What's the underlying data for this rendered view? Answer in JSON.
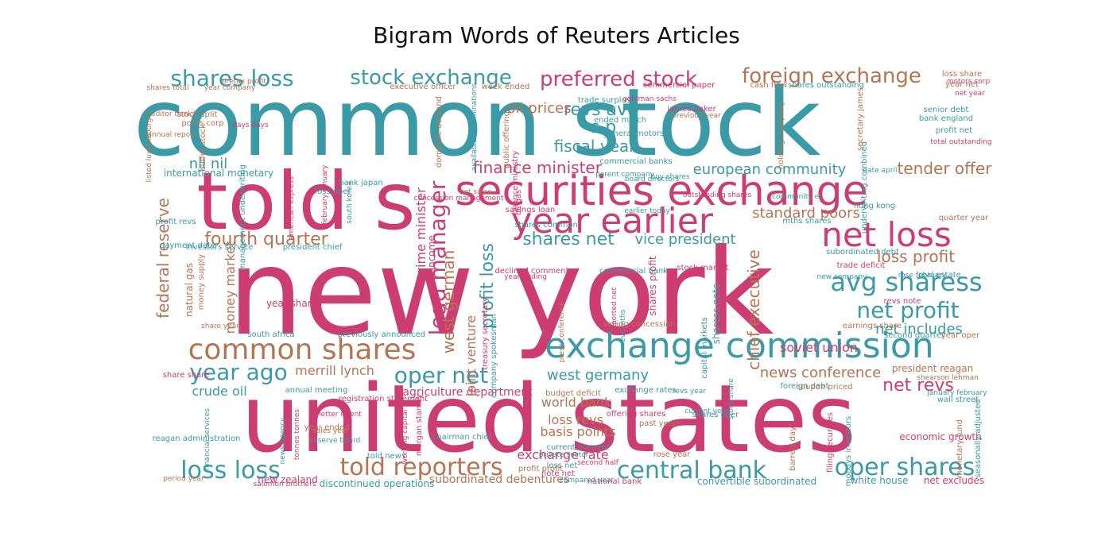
{
  "title": "Bigram Words of Reuters Articles",
  "palette": {
    "teal": "#3a9aa6",
    "pink": "#cc3d71",
    "brown": "#b57552"
  },
  "words": [
    {
      "text": "common stock",
      "color": "teal"
    },
    {
      "text": "new york",
      "color": "pink"
    },
    {
      "text": "united states",
      "color": "pink"
    },
    {
      "text": "told s",
      "color": "pink"
    },
    {
      "text": "securities exchange",
      "color": "pink"
    },
    {
      "text": "year earlier",
      "color": "pink"
    },
    {
      "text": "exchange commission",
      "color": "teal"
    },
    {
      "text": "net loss",
      "color": "pink"
    },
    {
      "text": "common shares",
      "color": "brown"
    },
    {
      "text": "shares loss",
      "color": "teal"
    },
    {
      "text": "stock exchange",
      "color": "teal"
    },
    {
      "text": "preferred stock",
      "color": "pink"
    },
    {
      "text": "foreign exchange",
      "color": "brown"
    },
    {
      "text": "loss loss",
      "color": "teal"
    },
    {
      "text": "told reporters",
      "color": "brown"
    },
    {
      "text": "central bank",
      "color": "teal"
    },
    {
      "text": "oper shares",
      "color": "teal"
    },
    {
      "text": "avg sharess",
      "color": "teal"
    },
    {
      "text": "net profit",
      "color": "teal"
    },
    {
      "text": "year ago",
      "color": "teal"
    },
    {
      "text": "oper net",
      "color": "teal"
    },
    {
      "text": "fourth quarter",
      "color": "brown"
    },
    {
      "text": "lead manager",
      "color": "pink"
    },
    {
      "text": "finance minister",
      "color": "pink"
    },
    {
      "text": "european community",
      "color": "teal"
    },
    {
      "text": "tender offer",
      "color": "brown"
    },
    {
      "text": "standard poors",
      "color": "brown"
    },
    {
      "text": "loss profit",
      "color": "brown"
    },
    {
      "text": "shares net",
      "color": "teal"
    },
    {
      "text": "vice president",
      "color": "teal"
    },
    {
      "text": "west germany",
      "color": "teal"
    },
    {
      "text": "news conference",
      "color": "brown"
    },
    {
      "text": "net revs",
      "color": "pink"
    },
    {
      "text": "net includes",
      "color": "teal"
    },
    {
      "text": "soviet union",
      "color": "pink"
    },
    {
      "text": "federal reserve",
      "color": "brown"
    },
    {
      "text": "revs avg",
      "color": "teal"
    },
    {
      "text": "s p",
      "color": "teal"
    },
    {
      "text": "fiscal year",
      "color": "teal"
    },
    {
      "text": "oil prices",
      "color": "brown"
    },
    {
      "text": "nil nil",
      "color": "teal"
    },
    {
      "text": "profit loss",
      "color": "teal"
    },
    {
      "text": "west german",
      "color": "brown"
    },
    {
      "text": "chief executive",
      "color": "brown"
    },
    {
      "text": "merrill lynch",
      "color": "brown"
    },
    {
      "text": "crude oil",
      "color": "teal"
    },
    {
      "text": "world bank",
      "color": "brown"
    },
    {
      "text": "loss revs",
      "color": "brown"
    },
    {
      "text": "basis points",
      "color": "brown"
    },
    {
      "text": "exchange rate",
      "color": "pink"
    },
    {
      "text": "agriculture department",
      "color": "pink"
    },
    {
      "text": "money market",
      "color": "brown"
    },
    {
      "text": "prime minister",
      "color": "pink"
    },
    {
      "text": "joint venture",
      "color": "brown"
    },
    {
      "text": "net income",
      "color": "pink"
    },
    {
      "text": "subordinated debentures",
      "color": "brown"
    },
    {
      "text": "discontinued operations",
      "color": "teal"
    },
    {
      "text": "convertible subordinated",
      "color": "teal"
    },
    {
      "text": "white house",
      "color": "teal"
    },
    {
      "text": "net excludes",
      "color": "pink"
    },
    {
      "text": "president reagan",
      "color": "brown"
    },
    {
      "text": "economic growth",
      "color": "pink"
    },
    {
      "text": "new zealand",
      "color": "pink"
    },
    {
      "text": "natural gas",
      "color": "brown"
    },
    {
      "text": "year shares",
      "color": "pink"
    },
    {
      "text": "shares profit",
      "color": "pink"
    },
    {
      "text": "sharess note",
      "color": "teal"
    },
    {
      "text": "international monetary",
      "color": "teal"
    },
    {
      "text": "investors service",
      "color": "teal"
    },
    {
      "text": "president chief",
      "color": "teal"
    },
    {
      "text": "executive officer",
      "color": "brown"
    },
    {
      "text": "week ended",
      "color": "brown"
    },
    {
      "text": "trade surplus",
      "color": "teal"
    },
    {
      "text": "ended march",
      "color": "teal"
    },
    {
      "text": "general motors",
      "color": "teal"
    },
    {
      "text": "commercial banks",
      "color": "teal"
    },
    {
      "text": "holding company",
      "color": "brown"
    },
    {
      "text": "james baker",
      "color": "pink"
    },
    {
      "text": "senior debt",
      "color": "teal"
    },
    {
      "text": "bank england",
      "color": "teal"
    },
    {
      "text": "profit net",
      "color": "teal"
    },
    {
      "text": "year net",
      "color": "brown"
    },
    {
      "text": "loss share",
      "color": "brown"
    },
    {
      "text": "cash flow",
      "color": "brown"
    },
    {
      "text": "shares outstanding",
      "color": "teal"
    },
    {
      "text": "commercial paper",
      "color": "pink"
    },
    {
      "text": "stock split",
      "color": "brown"
    },
    {
      "text": "poors corp",
      "color": "brown"
    },
    {
      "text": "buffer stock",
      "color": "brown"
    },
    {
      "text": "bank japan",
      "color": "teal"
    },
    {
      "text": "management underwriting",
      "color": "teal"
    },
    {
      "text": "loss oper",
      "color": "teal"
    },
    {
      "text": "mths shares",
      "color": "teal"
    },
    {
      "text": "hong kong",
      "color": "teal"
    },
    {
      "text": "quarter year",
      "color": "brown"
    },
    {
      "text": "subordinated debt",
      "color": "teal"
    },
    {
      "text": "trade deficit",
      "color": "pink"
    },
    {
      "text": "real estate",
      "color": "teal"
    },
    {
      "text": "revs note",
      "color": "pink"
    },
    {
      "text": "earnings share",
      "color": "brown"
    },
    {
      "text": "second quarter",
      "color": "teal"
    },
    {
      "text": "year oper",
      "color": "brown"
    },
    {
      "text": "foreign debt",
      "color": "teal"
    },
    {
      "text": "coupon priced",
      "color": "brown"
    },
    {
      "text": "wall street",
      "color": "teal"
    },
    {
      "text": "budget deficit",
      "color": "brown"
    },
    {
      "text": "current account",
      "color": "teal"
    },
    {
      "text": "loss net",
      "color": "teal"
    },
    {
      "text": "note net",
      "color": "pink"
    },
    {
      "text": "profit profit",
      "color": "brown"
    },
    {
      "text": "exchange rates",
      "color": "teal"
    },
    {
      "text": "national bank",
      "color": "pink"
    },
    {
      "text": "annual meeting",
      "color": "teal"
    },
    {
      "text": "south africa",
      "color": "teal"
    },
    {
      "text": "previously announced",
      "color": "teal"
    },
    {
      "text": "payment date",
      "color": "teal"
    },
    {
      "text": "profit revs",
      "color": "teal"
    },
    {
      "text": "share share",
      "color": "pink"
    },
    {
      "text": "year ended",
      "color": "brown"
    },
    {
      "text": "told news",
      "color": "teal"
    },
    {
      "text": "chairman chief",
      "color": "teal"
    },
    {
      "text": "savings loan",
      "color": "pink"
    },
    {
      "text": "shares common",
      "color": "teal"
    },
    {
      "text": "declined comment",
      "color": "pink"
    },
    {
      "text": "stock market",
      "color": "pink"
    },
    {
      "text": "commercial bank",
      "color": "teal"
    },
    {
      "text": "selling concession",
      "color": "brown"
    },
    {
      "text": "capital markets",
      "color": "teal"
    },
    {
      "text": "morgan stanley",
      "color": "pink"
    },
    {
      "text": "money supply",
      "color": "brown"
    },
    {
      "text": "reagan administration",
      "color": "teal"
    },
    {
      "text": "barrels day",
      "color": "brown"
    },
    {
      "text": "filing securities",
      "color": "pink"
    },
    {
      "text": "moodys investors",
      "color": "teal"
    },
    {
      "text": "monetary fund",
      "color": "brown"
    },
    {
      "text": "seasonally adjusted",
      "color": "teal"
    },
    {
      "text": "treasury secretary",
      "color": "pink"
    },
    {
      "text": "company spokesman",
      "color": "teal"
    },
    {
      "text": "offering shares",
      "color": "pink"
    },
    {
      "text": "shares oper",
      "color": "teal"
    },
    {
      "text": "past years",
      "color": "brown"
    },
    {
      "text": "rose year",
      "color": "brown"
    },
    {
      "text": "registration statement",
      "color": "pink"
    },
    {
      "text": "listed luxembourg",
      "color": "brown"
    },
    {
      "text": "finance ministry",
      "color": "pink"
    },
    {
      "text": "oil gas",
      "color": "pink"
    },
    {
      "text": "underwriting combined",
      "color": "teal"
    },
    {
      "text": "date april",
      "color": "teal"
    },
    {
      "text": "secretary james",
      "color": "brown"
    },
    {
      "text": "domestic demand",
      "color": "brown"
    },
    {
      "text": "public offering",
      "color": "brown"
    },
    {
      "text": "goldman sachs",
      "color": "pink"
    },
    {
      "text": "previous year",
      "color": "brown"
    },
    {
      "text": "buy shares",
      "color": "teal"
    },
    {
      "text": "board directors",
      "color": "teal"
    },
    {
      "text": "total outstanding",
      "color": "pink"
    },
    {
      "text": "motors corp",
      "color": "pink"
    },
    {
      "text": "pretax profit",
      "color": "brown"
    },
    {
      "text": "shares total",
      "color": "brown"
    },
    {
      "text": "creditor banks",
      "color": "brown"
    },
    {
      "text": "annual report",
      "color": "brown"
    },
    {
      "text": "days days",
      "color": "pink"
    },
    {
      "text": "american express",
      "color": "pink"
    },
    {
      "text": "february january",
      "color": "pink"
    },
    {
      "text": "earlier today",
      "color": "teal"
    },
    {
      "text": "parent company",
      "color": "teal"
    },
    {
      "text": "outstanding shares",
      "color": "pink"
    },
    {
      "text": "community ec",
      "color": "teal"
    },
    {
      "text": "net sales",
      "color": "brown"
    },
    {
      "text": "new company",
      "color": "teal"
    },
    {
      "text": "rose february",
      "color": "teal"
    },
    {
      "text": "year ending",
      "color": "pink"
    },
    {
      "text": "reported net",
      "color": "pink"
    },
    {
      "text": "revs mths",
      "color": "teal"
    },
    {
      "text": "press conference",
      "color": "brown"
    },
    {
      "text": "share year",
      "color": "brown"
    },
    {
      "text": "period year",
      "color": "brown"
    },
    {
      "text": "salomon brothers",
      "color": "pink"
    },
    {
      "text": "reserve board",
      "color": "teal"
    },
    {
      "text": "sales year",
      "color": "brown"
    },
    {
      "text": "letter intent",
      "color": "pink"
    },
    {
      "text": "tonnes tonnes",
      "color": "pink"
    },
    {
      "text": "news agency",
      "color": "teal"
    },
    {
      "text": "financial services",
      "color": "teal"
    },
    {
      "text": "working capital",
      "color": "pink"
    },
    {
      "text": "private sector",
      "color": "teal"
    },
    {
      "text": "second half",
      "color": "pink"
    },
    {
      "text": "compared year",
      "color": "teal"
    },
    {
      "text": "january february",
      "color": "teal"
    },
    {
      "text": "shearson lehman",
      "color": "brown"
    },
    {
      "text": "current year",
      "color": "teal"
    },
    {
      "text": "revs year",
      "color": "teal"
    },
    {
      "text": "stock share",
      "color": "teal"
    },
    {
      "text": "available denominations",
      "color": "teal"
    },
    {
      "text": "south korea",
      "color": "teal"
    },
    {
      "text": "concession management",
      "color": "pink"
    },
    {
      "text": "net year",
      "color": "pink"
    },
    {
      "text": "year company",
      "color": "brown"
    },
    {
      "text": "year year",
      "color": "brown"
    }
  ]
}
